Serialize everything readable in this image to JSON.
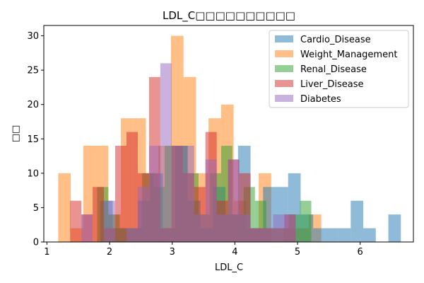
{
  "chart_data": {
    "type": "histogram",
    "title": "LDL_C□□□□□□□□□□",
    "xlabel": "LDL_C",
    "ylabel": "□□",
    "xlim": [
      0.95,
      6.85
    ],
    "ylim": [
      0,
      31.5
    ],
    "xticks": [
      1,
      2,
      3,
      4,
      5,
      6
    ],
    "yticks": [
      0,
      5,
      10,
      15,
      20,
      25,
      30
    ],
    "legend_position": "top-right",
    "alpha": 0.5,
    "series": [
      {
        "name": "Weight_Management",
        "color": "#ff7f0e",
        "bins": [
          {
            "x0": 1.18,
            "x1": 1.38,
            "count": 10
          },
          {
            "x0": 1.38,
            "x1": 1.58,
            "count": 2
          },
          {
            "x0": 1.58,
            "x1": 1.78,
            "count": 14
          },
          {
            "x0": 1.78,
            "x1": 1.98,
            "count": 14
          },
          {
            "x0": 1.98,
            "x1": 2.18,
            "count": 4
          },
          {
            "x0": 2.18,
            "x1": 2.38,
            "count": 18
          },
          {
            "x0": 2.38,
            "x1": 2.58,
            "count": 18
          },
          {
            "x0": 2.58,
            "x1": 2.78,
            "count": 10
          },
          {
            "x0": 2.78,
            "x1": 2.98,
            "count": 14
          },
          {
            "x0": 2.98,
            "x1": 3.18,
            "count": 30
          },
          {
            "x0": 3.18,
            "x1": 3.38,
            "count": 24
          },
          {
            "x0": 3.38,
            "x1": 3.58,
            "count": 10
          },
          {
            "x0": 3.58,
            "x1": 3.78,
            "count": 18
          },
          {
            "x0": 3.78,
            "x1": 3.98,
            "count": 20
          },
          {
            "x0": 3.98,
            "x1": 4.18,
            "count": 6
          },
          {
            "x0": 4.18,
            "x1": 4.38,
            "count": 2
          },
          {
            "x0": 4.38,
            "x1": 4.58,
            "count": 10
          },
          {
            "x0": 4.58,
            "x1": 4.78,
            "count": 0
          },
          {
            "x0": 4.78,
            "x1": 4.98,
            "count": 2
          },
          {
            "x0": 4.98,
            "x1": 5.18,
            "count": 2
          },
          {
            "x0": 5.18,
            "x1": 5.38,
            "count": 4
          }
        ]
      },
      {
        "name": "Cardio_Disease",
        "color": "#1f77b4",
        "bins": [
          {
            "x0": 1.85,
            "x1": 2.05,
            "count": 6
          },
          {
            "x0": 2.05,
            "x1": 2.25,
            "count": 2
          },
          {
            "x0": 2.25,
            "x1": 2.45,
            "count": 2
          },
          {
            "x0": 2.45,
            "x1": 2.65,
            "count": 6
          },
          {
            "x0": 2.65,
            "x1": 2.85,
            "count": 10
          },
          {
            "x0": 2.85,
            "x1": 3.05,
            "count": 2
          },
          {
            "x0": 3.05,
            "x1": 3.25,
            "count": 14
          },
          {
            "x0": 3.25,
            "x1": 3.45,
            "count": 6
          },
          {
            "x0": 3.45,
            "x1": 3.65,
            "count": 2
          },
          {
            "x0": 3.65,
            "x1": 3.85,
            "count": 8
          },
          {
            "x0": 3.85,
            "x1": 4.05,
            "count": 4
          },
          {
            "x0": 4.05,
            "x1": 4.25,
            "count": 14
          },
          {
            "x0": 4.25,
            "x1": 4.45,
            "count": 2
          },
          {
            "x0": 4.45,
            "x1": 4.65,
            "count": 8
          },
          {
            "x0": 4.65,
            "x1": 4.85,
            "count": 8
          },
          {
            "x0": 4.85,
            "x1": 5.05,
            "count": 10
          },
          {
            "x0": 5.05,
            "x1": 5.25,
            "count": 4
          },
          {
            "x0": 5.25,
            "x1": 5.45,
            "count": 2
          },
          {
            "x0": 5.45,
            "x1": 5.65,
            "count": 2
          },
          {
            "x0": 5.65,
            "x1": 5.85,
            "count": 2
          },
          {
            "x0": 5.85,
            "x1": 6.05,
            "count": 6
          },
          {
            "x0": 6.05,
            "x1": 6.25,
            "count": 2
          },
          {
            "x0": 6.25,
            "x1": 6.45,
            "count": 0
          },
          {
            "x0": 6.45,
            "x1": 6.65,
            "count": 4
          }
        ]
      },
      {
        "name": "Renal_Disease",
        "color": "#2ca02c",
        "bins": [
          {
            "x0": 1.8,
            "x1": 1.98,
            "count": 8
          },
          {
            "x0": 1.98,
            "x1": 2.16,
            "count": 4
          },
          {
            "x0": 2.16,
            "x1": 2.34,
            "count": 2
          },
          {
            "x0": 2.34,
            "x1": 2.52,
            "count": 2
          },
          {
            "x0": 2.52,
            "x1": 2.7,
            "count": 10
          },
          {
            "x0": 2.7,
            "x1": 2.88,
            "count": 8
          },
          {
            "x0": 2.88,
            "x1": 3.06,
            "count": 14
          },
          {
            "x0": 3.06,
            "x1": 3.24,
            "count": 14
          },
          {
            "x0": 3.24,
            "x1": 3.42,
            "count": 10
          },
          {
            "x0": 3.42,
            "x1": 3.6,
            "count": 4
          },
          {
            "x0": 3.6,
            "x1": 3.78,
            "count": 10
          },
          {
            "x0": 3.78,
            "x1": 3.96,
            "count": 14
          },
          {
            "x0": 3.96,
            "x1": 4.14,
            "count": 4
          },
          {
            "x0": 4.14,
            "x1": 4.32,
            "count": 8
          },
          {
            "x0": 4.32,
            "x1": 4.5,
            "count": 6
          },
          {
            "x0": 4.5,
            "x1": 4.68,
            "count": 2
          },
          {
            "x0": 4.68,
            "x1": 4.86,
            "count": 2
          },
          {
            "x0": 4.86,
            "x1": 5.04,
            "count": 4
          },
          {
            "x0": 5.04,
            "x1": 5.22,
            "count": 6
          }
        ]
      },
      {
        "name": "Liver_Disease",
        "color": "#d62728",
        "bins": [
          {
            "x0": 1.37,
            "x1": 1.55,
            "count": 6
          },
          {
            "x0": 1.55,
            "x1": 1.73,
            "count": 4
          },
          {
            "x0": 1.73,
            "x1": 1.91,
            "count": 8
          },
          {
            "x0": 1.91,
            "x1": 2.09,
            "count": 2
          },
          {
            "x0": 2.09,
            "x1": 2.27,
            "count": 14
          },
          {
            "x0": 2.27,
            "x1": 2.45,
            "count": 16
          },
          {
            "x0": 2.45,
            "x1": 2.63,
            "count": 10
          },
          {
            "x0": 2.63,
            "x1": 2.81,
            "count": 24
          },
          {
            "x0": 2.81,
            "x1": 2.99,
            "count": 2
          },
          {
            "x0": 2.99,
            "x1": 3.17,
            "count": 14
          },
          {
            "x0": 3.17,
            "x1": 3.35,
            "count": 10
          },
          {
            "x0": 3.35,
            "x1": 3.53,
            "count": 8
          },
          {
            "x0": 3.53,
            "x1": 3.71,
            "count": 16
          },
          {
            "x0": 3.71,
            "x1": 3.89,
            "count": 6
          },
          {
            "x0": 3.89,
            "x1": 4.07,
            "count": 12
          },
          {
            "x0": 4.07,
            "x1": 4.25,
            "count": 10
          },
          {
            "x0": 4.25,
            "x1": 4.43,
            "count": 2
          },
          {
            "x0": 4.43,
            "x1": 4.61,
            "count": 2
          },
          {
            "x0": 4.61,
            "x1": 4.79,
            "count": 2
          },
          {
            "x0": 4.79,
            "x1": 4.97,
            "count": 4
          }
        ]
      },
      {
        "name": "Diabetes",
        "color": "#9467bd",
        "bins": [
          {
            "x0": 1.55,
            "x1": 1.73,
            "count": 4
          },
          {
            "x0": 1.73,
            "x1": 1.91,
            "count": 0
          },
          {
            "x0": 1.91,
            "x1": 2.09,
            "count": 6
          },
          {
            "x0": 2.09,
            "x1": 2.27,
            "count": 0
          },
          {
            "x0": 2.27,
            "x1": 2.45,
            "count": 2
          },
          {
            "x0": 2.45,
            "x1": 2.63,
            "count": 8
          },
          {
            "x0": 2.63,
            "x1": 2.81,
            "count": 14
          },
          {
            "x0": 2.81,
            "x1": 2.99,
            "count": 26
          },
          {
            "x0": 2.99,
            "x1": 3.17,
            "count": 14
          },
          {
            "x0": 3.17,
            "x1": 3.35,
            "count": 14
          },
          {
            "x0": 3.35,
            "x1": 3.53,
            "count": 4
          },
          {
            "x0": 3.53,
            "x1": 3.71,
            "count": 12
          },
          {
            "x0": 3.71,
            "x1": 3.89,
            "count": 4
          },
          {
            "x0": 3.89,
            "x1": 4.07,
            "count": 12
          },
          {
            "x0": 4.07,
            "x1": 4.25,
            "count": 4
          },
          {
            "x0": 4.25,
            "x1": 4.43,
            "count": 2
          },
          {
            "x0": 4.43,
            "x1": 4.61,
            "count": 2
          },
          {
            "x0": 4.61,
            "x1": 4.79,
            "count": 4
          },
          {
            "x0": 4.79,
            "x1": 4.97,
            "count": 4
          }
        ]
      }
    ],
    "legend_order": [
      "Cardio_Disease",
      "Weight_Management",
      "Renal_Disease",
      "Liver_Disease",
      "Diabetes"
    ]
  }
}
